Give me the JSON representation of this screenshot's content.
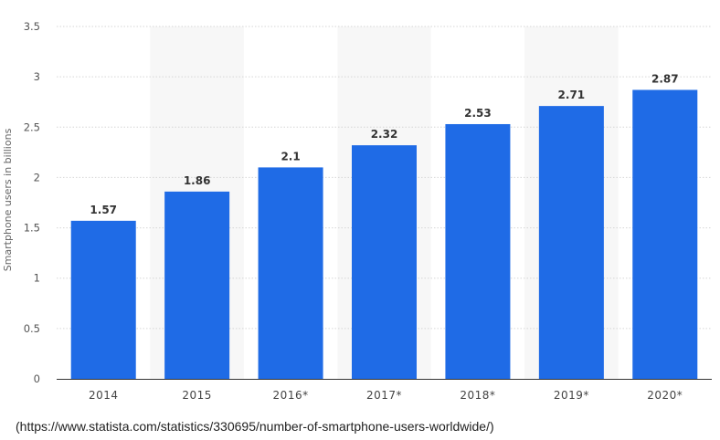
{
  "chart_data": {
    "type": "bar",
    "categories": [
      "2014",
      "2015",
      "2016*",
      "2017*",
      "2018*",
      "2019*",
      "2020*"
    ],
    "values": [
      1.57,
      1.86,
      2.1,
      2.32,
      2.53,
      2.71,
      2.87
    ],
    "value_labels": [
      "1.57",
      "1.86",
      "2.1",
      "2.32",
      "2.53",
      "2.71",
      "2.87"
    ],
    "title": "",
    "xlabel": "",
    "ylabel": "Smartphone users in billions",
    "ylim": [
      0,
      3.5
    ],
    "yticks": [
      0,
      0.5,
      1,
      1.5,
      2,
      2.5,
      3,
      3.5
    ],
    "ytick_labels": [
      "0",
      "0.5",
      "1",
      "1.5",
      "2",
      "2.5",
      "3",
      "3.5"
    ],
    "grid": true,
    "bar_color": "#1f6be6",
    "alternating_band_color": "#f7f7f7",
    "gridline_color": "#d6d6d6"
  },
  "source": {
    "text": "(https://www.statista.com/statistics/330695/number-of-smartphone-users-worldwide/)"
  }
}
